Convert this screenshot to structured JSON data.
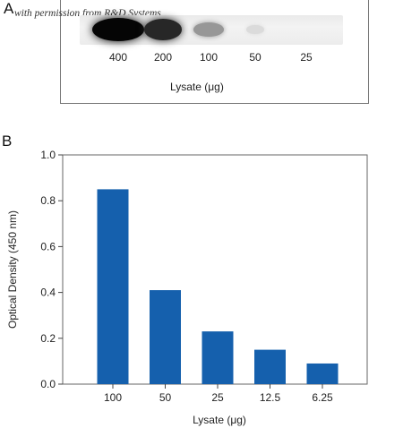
{
  "panel_a": {
    "letter": "A",
    "watermark": "with permission from R&D Systems",
    "lanes": [
      "400",
      "200",
      "100",
      "50",
      "25"
    ],
    "xlabel": "Lysate (μg)",
    "band_intensity": [
      1.0,
      0.85,
      0.35,
      0.05,
      0.0
    ]
  },
  "panel_b": {
    "letter": "B"
  },
  "chart_data": {
    "type": "bar",
    "categories": [
      "100",
      "50",
      "25",
      "12.5",
      "6.25"
    ],
    "values": [
      0.85,
      0.41,
      0.23,
      0.15,
      0.09
    ],
    "xlabel": "Lysate (μg)",
    "ylabel": "Optical Density (450 nm)",
    "ylim": [
      0,
      1.0
    ],
    "yticks": [
      "0.0",
      "0.2",
      "0.4",
      "0.6",
      "0.8",
      "1.0"
    ],
    "bar_color": "#1560ad",
    "grid": false
  }
}
